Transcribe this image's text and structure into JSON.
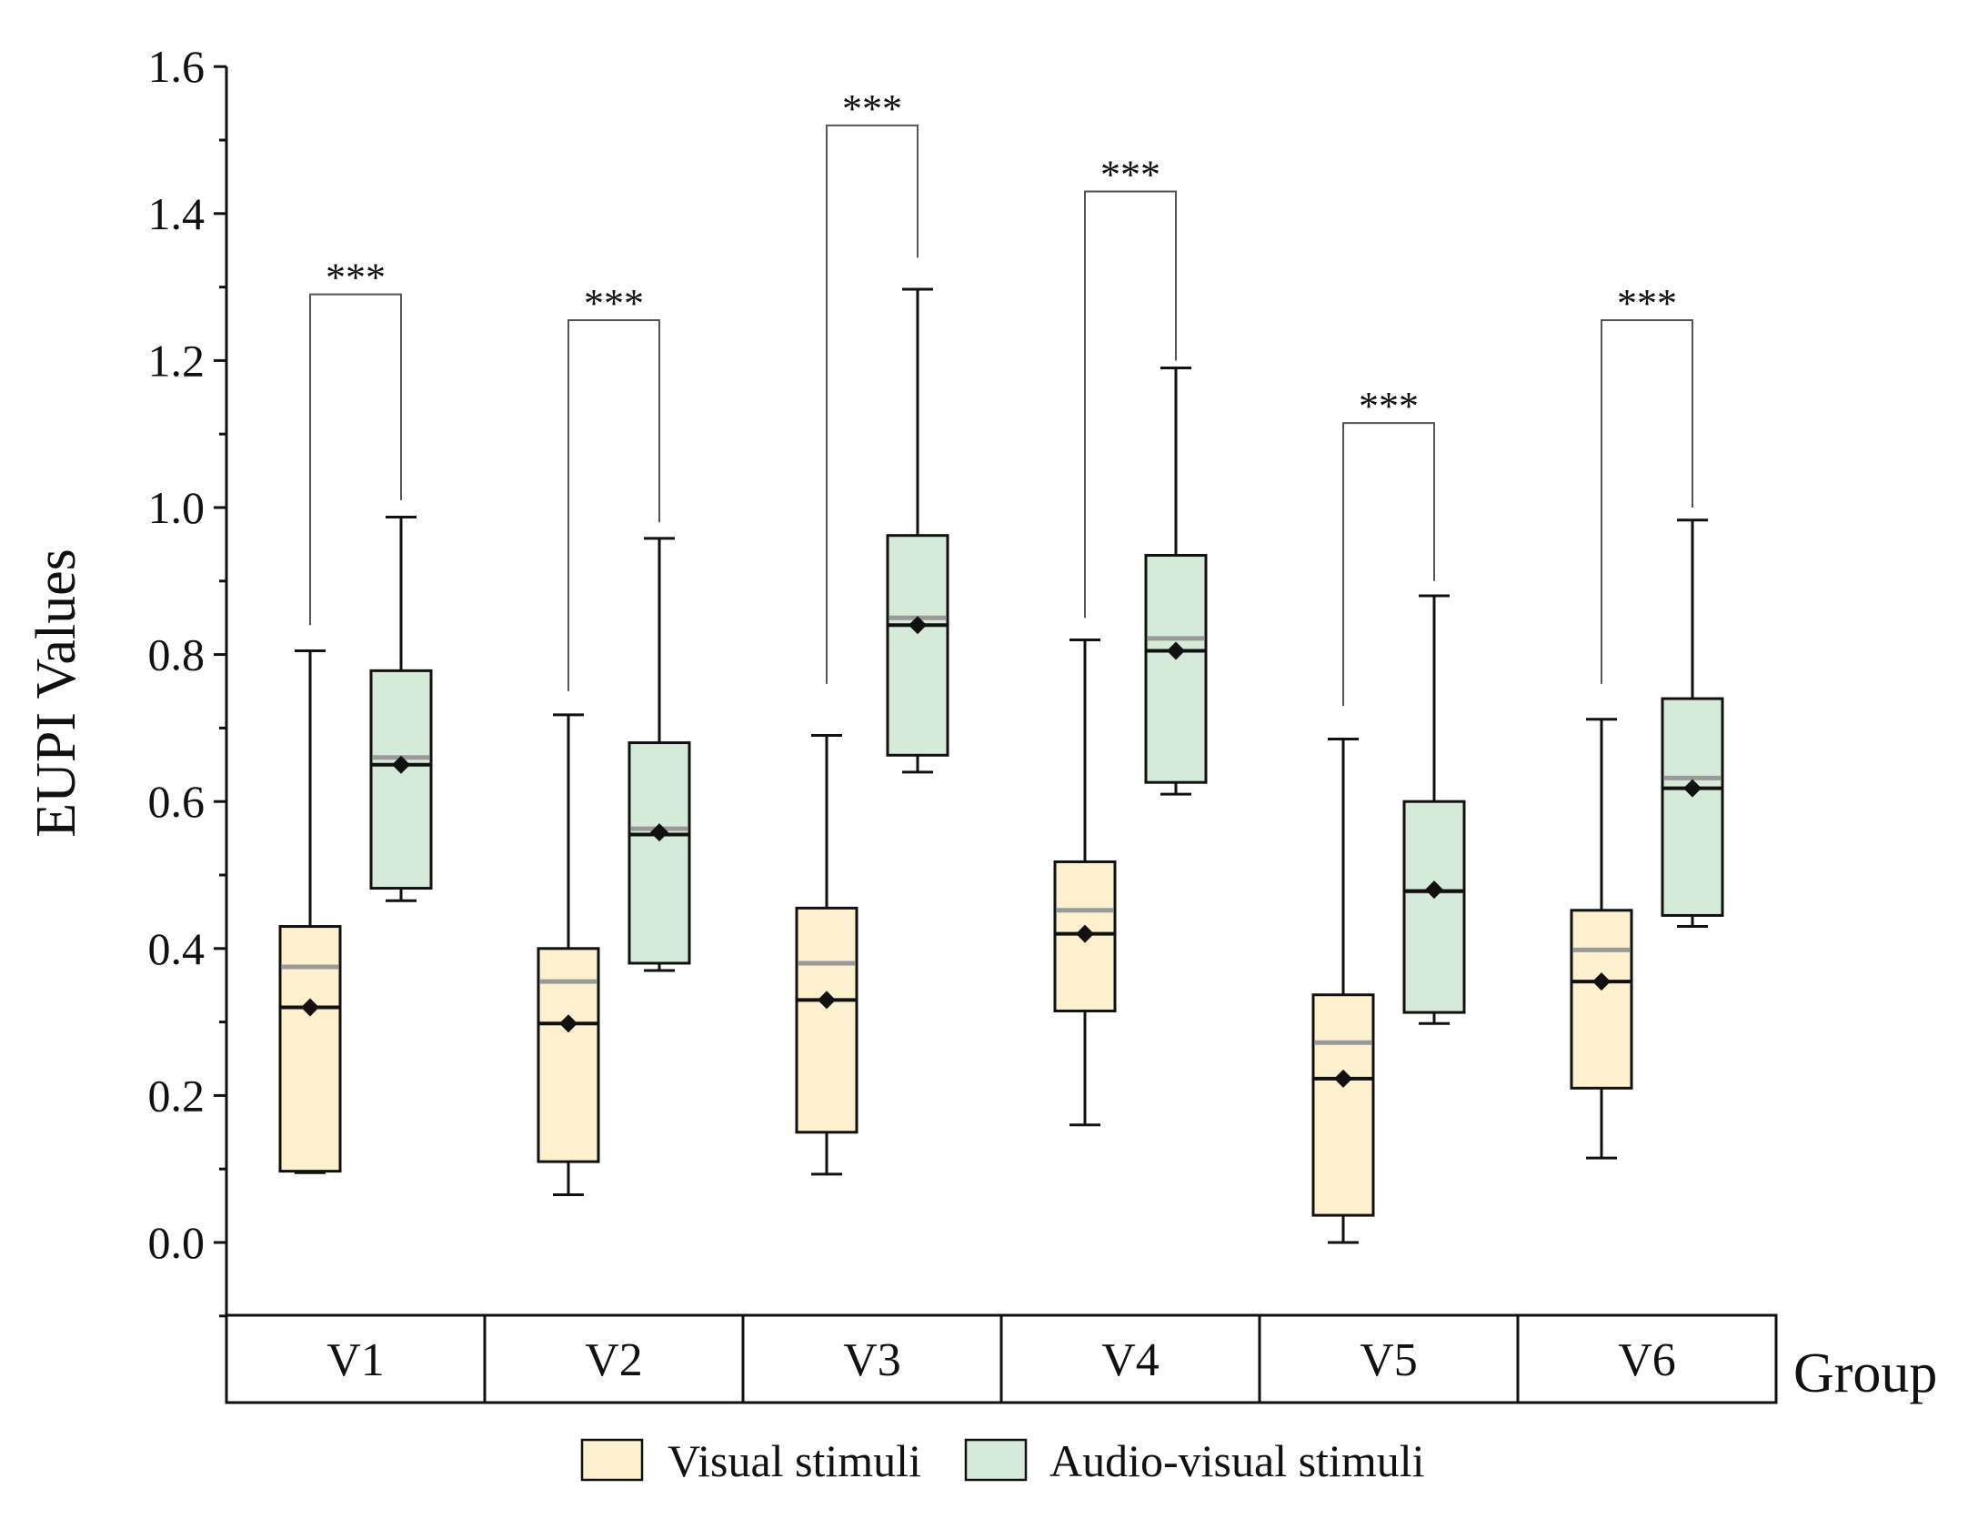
{
  "chart_data": {
    "type": "box",
    "ylabel": "EUPI Values",
    "xlabel": "Group",
    "ylim": [
      -0.1,
      1.6
    ],
    "yticks": [
      "0.0",
      "0.2",
      "0.4",
      "0.6",
      "0.8",
      "1.0",
      "1.2",
      "1.4",
      "1.6"
    ],
    "ytick_values": [
      0.0,
      0.2,
      0.4,
      0.6,
      0.8,
      1.0,
      1.2,
      1.4,
      1.6
    ],
    "categories": [
      "V1",
      "V2",
      "V3",
      "V4",
      "V5",
      "V6"
    ],
    "colors": {
      "visual_fill": "#fdf0cf",
      "audio_fill": "#d6ead9",
      "box_stroke": "#111111",
      "mean_line": "#999999",
      "bracket": "#555555"
    },
    "series": [
      {
        "name": "Visual stimuli",
        "key": "visual",
        "boxes": [
          {
            "min": 0.095,
            "q1": 0.097,
            "median": 0.32,
            "q3": 0.43,
            "max": 0.805,
            "mean": 0.32,
            "meanline": 0.375
          },
          {
            "min": 0.065,
            "q1": 0.11,
            "median": 0.298,
            "q3": 0.4,
            "max": 0.718,
            "mean": 0.298,
            "meanline": 0.355
          },
          {
            "min": 0.093,
            "q1": 0.15,
            "median": 0.33,
            "q3": 0.455,
            "max": 0.69,
            "mean": 0.33,
            "meanline": 0.38
          },
          {
            "min": 0.16,
            "q1": 0.315,
            "median": 0.42,
            "q3": 0.518,
            "max": 0.82,
            "mean": 0.42,
            "meanline": 0.452
          },
          {
            "min": 0.0,
            "q1": 0.037,
            "median": 0.223,
            "q3": 0.337,
            "max": 0.685,
            "mean": 0.223,
            "meanline": 0.272
          },
          {
            "min": 0.115,
            "q1": 0.21,
            "median": 0.355,
            "q3": 0.452,
            "max": 0.712,
            "mean": 0.355,
            "meanline": 0.398
          }
        ]
      },
      {
        "name": "Audio-visual stimuli",
        "key": "audio",
        "boxes": [
          {
            "min": 0.465,
            "q1": 0.482,
            "median": 0.65,
            "q3": 0.778,
            "max": 0.987,
            "mean": 0.65,
            "meanline": 0.66
          },
          {
            "min": 0.37,
            "q1": 0.38,
            "median": 0.555,
            "q3": 0.68,
            "max": 0.958,
            "mean": 0.558,
            "meanline": 0.563
          },
          {
            "min": 0.64,
            "q1": 0.663,
            "median": 0.84,
            "q3": 0.962,
            "max": 1.297,
            "mean": 0.84,
            "meanline": 0.85
          },
          {
            "min": 0.61,
            "q1": 0.626,
            "median": 0.805,
            "q3": 0.935,
            "max": 1.19,
            "mean": 0.805,
            "meanline": 0.822
          },
          {
            "min": 0.298,
            "q1": 0.313,
            "median": 0.478,
            "q3": 0.6,
            "max": 0.88,
            "mean": 0.48,
            "meanline": 0.478
          },
          {
            "min": 0.43,
            "q1": 0.445,
            "median": 0.618,
            "q3": 0.74,
            "max": 0.983,
            "mean": 0.618,
            "meanline": 0.632
          }
        ]
      }
    ],
    "significance": [
      {
        "group": "V1",
        "label": "***",
        "height": 1.29,
        "start": 0.84,
        "end": 1.01
      },
      {
        "group": "V2",
        "label": "***",
        "height": 1.255,
        "start": 0.75,
        "end": 0.98
      },
      {
        "group": "V3",
        "label": "***",
        "height": 1.52,
        "start": 0.76,
        "end": 1.34
      },
      {
        "group": "V4",
        "label": "***",
        "height": 1.43,
        "start": 0.85,
        "end": 1.2
      },
      {
        "group": "V5",
        "label": "***",
        "height": 1.115,
        "start": 0.73,
        "end": 0.9
      },
      {
        "group": "V6",
        "label": "***",
        "height": 1.255,
        "start": 0.76,
        "end": 1.0
      }
    ],
    "legend": {
      "position": "bottom-center",
      "items": [
        {
          "label": "Visual stimuli",
          "key": "visual"
        },
        {
          "label": "Audio-visual stimuli",
          "key": "audio"
        }
      ]
    }
  }
}
